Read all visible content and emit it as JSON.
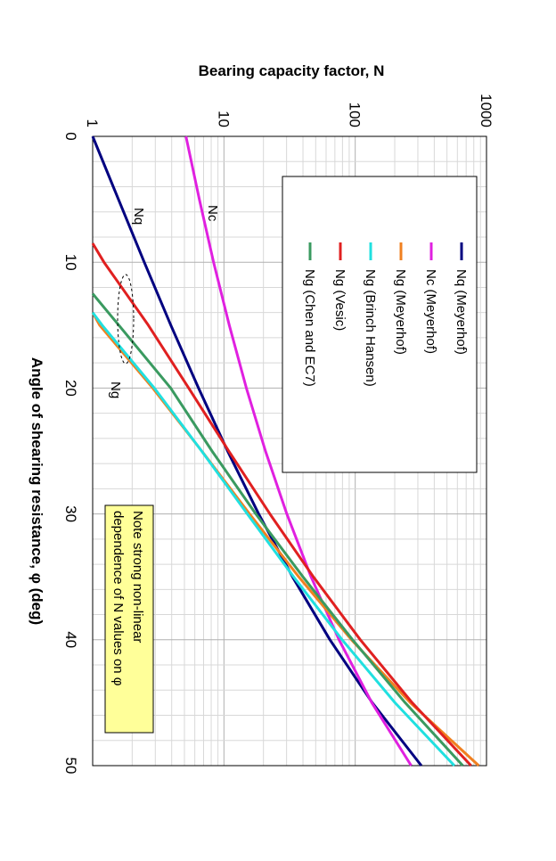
{
  "chart_data": {
    "type": "line",
    "xlabel": "Angle of shearing resistance, φ (deg)",
    "ylabel": "Bearing capacity factor, N",
    "xlim": [
      0,
      50
    ],
    "ylim": [
      1,
      1000
    ],
    "yscale": "log",
    "x_ticks": [
      "0",
      "10",
      "20",
      "30",
      "40",
      "50"
    ],
    "y_ticks": [
      "1",
      "10",
      "100",
      "1000"
    ],
    "grid": true,
    "legend_placement": "top-left",
    "orientation": "rotated-90-clockwise",
    "series": [
      {
        "name": "Nq (Meyerhof)",
        "color": "#000080",
        "x": [
          0,
          5,
          10,
          15,
          20,
          25,
          30,
          35,
          40,
          45,
          50
        ],
        "y": [
          1.0,
          1.57,
          2.47,
          3.94,
          6.4,
          10.66,
          18.4,
          33.3,
          64.2,
          134.9,
          319.1
        ]
      },
      {
        "name": "Nc (Meyerhof)",
        "color": "#e020e0",
        "x": [
          0,
          5,
          10,
          15,
          20,
          25,
          30,
          35,
          40,
          45,
          50
        ],
        "y": [
          5.14,
          6.49,
          8.34,
          10.98,
          14.83,
          20.72,
          30.14,
          46.12,
          75.31,
          133.9,
          266.9
        ]
      },
      {
        "name": "Ng (Meyerhof)",
        "color": "#f08020",
        "x": [
          14,
          15,
          20,
          25,
          30,
          35,
          40,
          45,
          50
        ],
        "y": [
          1.0,
          1.13,
          2.87,
          6.77,
          15.67,
          37.15,
          93.69,
          262.7,
          873.0
        ]
      },
      {
        "name": "Ng (Brinch Hansen)",
        "color": "#20e0e0",
        "x": [
          14,
          15,
          20,
          25,
          30,
          35,
          40,
          45,
          50
        ],
        "y": [
          1.0,
          1.18,
          2.95,
          6.76,
          15.07,
          33.92,
          79.54,
          200.8,
          568.6
        ]
      },
      {
        "name": "Ng (Vesic)",
        "color": "#e02020",
        "x": [
          8.5,
          10,
          15,
          20,
          25,
          30,
          35,
          40,
          45,
          50
        ],
        "y": [
          1.0,
          1.22,
          2.65,
          5.39,
          10.88,
          22.4,
          48.03,
          109.4,
          271.8,
          762.9
        ]
      },
      {
        "name": "Ng (Chen and EC7)",
        "color": "#3a9a60",
        "x": [
          12.5,
          15,
          20,
          25,
          30,
          35,
          40,
          45,
          50
        ],
        "y": [
          1.0,
          1.58,
          3.93,
          8.11,
          17.5,
          40.0,
          95.4,
          240,
          660
        ]
      }
    ],
    "curve_labels": [
      "Nc",
      "Nq",
      "Ng"
    ],
    "annotation": "Note strong non-linear dependence of N values on φ"
  }
}
